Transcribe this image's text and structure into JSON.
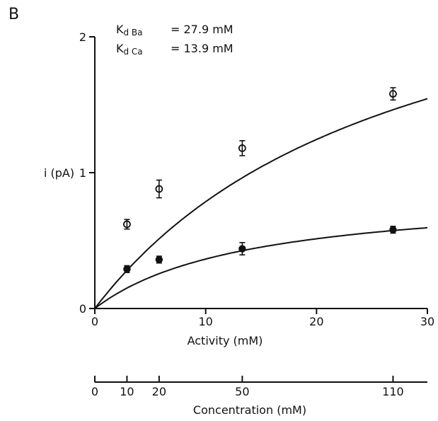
{
  "panel_label": "B",
  "chart_data": {
    "type": "scatter",
    "xlabel": "Activity (mM)",
    "ylabel": "i (pA)",
    "xlim": [
      0,
      30
    ],
    "ylim": [
      0,
      2
    ],
    "x_ticks": [
      "0",
      "10",
      "20",
      "30"
    ],
    "y_ticks": [
      "0",
      "1",
      "2"
    ],
    "annotations": [
      {
        "prefix": "K",
        "sub": "d Ba",
        "value": "= 27.9 mM"
      },
      {
        "prefix": "K",
        "sub": "d Ca",
        "value": "= 13.9 mM"
      }
    ],
    "series": [
      {
        "marker": "open-circle",
        "x": [
          2.9,
          5.8,
          13.3,
          26.9
        ],
        "y": [
          0.62,
          0.88,
          1.18,
          1.58
        ],
        "err": [
          0.03,
          0.06,
          0.05,
          0.04
        ],
        "fit": {
          "model": "i = imax*x/(Kd+x)",
          "imax": 2.98,
          "Kd": 27.9
        }
      },
      {
        "marker": "filled-circle",
        "x": [
          2.9,
          5.8,
          13.3,
          26.9
        ],
        "y": [
          0.29,
          0.36,
          0.44,
          0.58
        ],
        "err": [
          0.02,
          0.02,
          0.04,
          0.02
        ],
        "fit": {
          "model": "i = imax*x/(Kd+x)",
          "imax": 0.87,
          "Kd": 13.9
        }
      }
    ],
    "secondary_axis": {
      "label": "Concentration (mM)",
      "ticks": [
        {
          "label": "0",
          "activity": 0
        },
        {
          "label": "10",
          "activity": 2.9
        },
        {
          "label": "20",
          "activity": 5.8
        },
        {
          "label": "50",
          "activity": 13.3
        },
        {
          "label": "110",
          "activity": 26.9
        }
      ]
    }
  }
}
